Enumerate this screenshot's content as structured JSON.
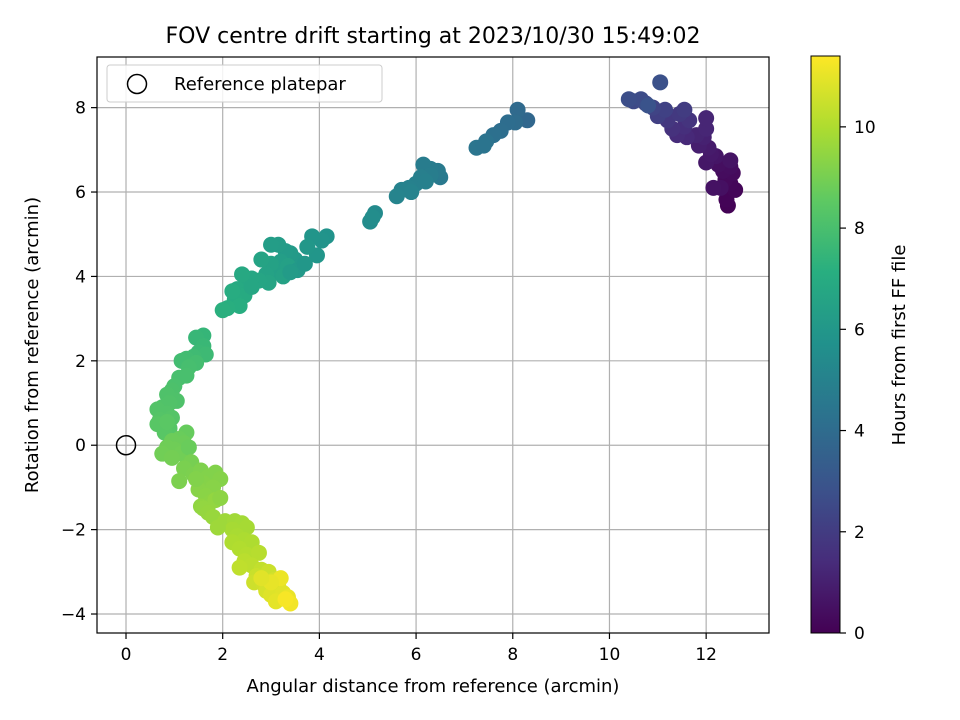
{
  "chart_data": {
    "type": "scatter",
    "title": "FOV centre drift starting at 2023/10/30 15:49:02",
    "xlabel": "Angular distance from reference (arcmin)",
    "ylabel": "Rotation from reference (arcmin)",
    "xlim": [
      -0.6,
      13.3
    ],
    "ylim": [
      -4.45,
      9.2
    ],
    "xticks": [
      0,
      2,
      4,
      6,
      8,
      10,
      12
    ],
    "yticks": [
      -4,
      -2,
      0,
      2,
      4,
      6,
      8
    ],
    "grid": true,
    "legend": {
      "position": "top-left",
      "entries": [
        "Reference platepar"
      ]
    },
    "reference_point": {
      "x": 0,
      "y": 0,
      "label": "Reference platepar"
    },
    "colorbar": {
      "label": "Hours from first FF file",
      "range": [
        0,
        11.4
      ],
      "ticks": [
        0,
        2,
        4,
        6,
        8,
        10
      ],
      "colormap": "viridis"
    },
    "series": [
      {
        "note": "each point: [x arcmin, y arcmin, hours]",
        "points": [
          [
            12.45,
            5.68,
            0.05
          ],
          [
            12.42,
            5.82,
            0.1
          ],
          [
            12.6,
            6.05,
            0.15
          ],
          [
            12.5,
            6.2,
            0.2
          ],
          [
            12.4,
            6.3,
            0.25
          ],
          [
            12.55,
            6.45,
            0.3
          ],
          [
            12.35,
            6.5,
            0.35
          ],
          [
            12.5,
            6.6,
            0.4
          ],
          [
            12.25,
            6.65,
            0.45
          ],
          [
            12.3,
            6.1,
            0.5
          ],
          [
            12.15,
            6.1,
            0.55
          ],
          [
            12.5,
            6.75,
            0.6
          ],
          [
            12.2,
            6.85,
            0.65
          ],
          [
            12.0,
            6.7,
            0.7
          ],
          [
            12.1,
            6.9,
            0.75
          ],
          [
            12.05,
            7.05,
            0.85
          ],
          [
            11.85,
            7.1,
            0.95
          ],
          [
            11.95,
            7.3,
            1.05
          ],
          [
            11.8,
            7.35,
            1.15
          ],
          [
            12.0,
            7.5,
            1.2
          ],
          [
            11.6,
            7.3,
            1.3
          ],
          [
            11.4,
            7.35,
            1.4
          ],
          [
            11.55,
            7.55,
            1.5
          ],
          [
            11.3,
            7.5,
            1.6
          ],
          [
            11.65,
            7.7,
            1.7
          ],
          [
            11.2,
            7.7,
            1.8
          ],
          [
            11.45,
            7.85,
            1.9
          ],
          [
            11.55,
            7.95,
            2.0
          ],
          [
            11.0,
            7.8,
            2.1
          ],
          [
            11.15,
            7.95,
            2.2
          ],
          [
            10.9,
            8.0,
            2.3
          ],
          [
            10.75,
            8.1,
            2.4
          ],
          [
            10.5,
            8.15,
            2.5
          ],
          [
            10.65,
            8.2,
            2.6
          ],
          [
            10.4,
            8.2,
            2.7
          ],
          [
            11.05,
            8.6,
            2.8
          ],
          [
            10.8,
            8.05,
            2.9
          ],
          [
            12.0,
            7.75,
            1.2
          ],
          [
            8.3,
            7.7,
            3.8
          ],
          [
            8.1,
            7.95,
            3.9
          ],
          [
            8.05,
            7.65,
            4.0
          ],
          [
            7.9,
            7.65,
            4.05
          ],
          [
            7.75,
            7.45,
            4.1
          ],
          [
            7.6,
            7.35,
            4.2
          ],
          [
            7.45,
            7.2,
            4.3
          ],
          [
            7.25,
            7.05,
            4.4
          ],
          [
            7.4,
            7.1,
            4.35
          ],
          [
            6.5,
            6.35,
            4.6
          ],
          [
            6.45,
            6.5,
            4.65
          ],
          [
            6.3,
            6.55,
            4.7
          ],
          [
            6.15,
            6.65,
            4.75
          ],
          [
            6.3,
            6.4,
            4.8
          ],
          [
            6.1,
            6.35,
            4.85
          ],
          [
            6.0,
            6.2,
            4.9
          ],
          [
            5.85,
            6.1,
            4.95
          ],
          [
            5.7,
            6.05,
            5.0
          ],
          [
            5.9,
            6.0,
            5.05
          ],
          [
            5.6,
            5.9,
            5.1
          ],
          [
            6.2,
            6.25,
            4.9
          ],
          [
            5.15,
            5.5,
            5.4
          ],
          [
            5.05,
            5.3,
            5.45
          ],
          [
            5.1,
            5.4,
            5.5
          ],
          [
            4.15,
            4.95,
            5.8
          ],
          [
            4.05,
            4.85,
            5.85
          ],
          [
            3.85,
            4.95,
            5.9
          ],
          [
            3.95,
            4.5,
            5.95
          ],
          [
            3.75,
            4.7,
            6.0
          ],
          [
            3.6,
            4.3,
            6.05
          ],
          [
            3.5,
            4.4,
            6.1
          ],
          [
            3.4,
            4.55,
            6.15
          ],
          [
            3.3,
            4.6,
            6.2
          ],
          [
            3.15,
            4.75,
            6.25
          ],
          [
            3.0,
            4.75,
            6.3
          ],
          [
            3.2,
            4.35,
            6.35
          ],
          [
            3.1,
            4.1,
            6.4
          ],
          [
            3.35,
            4.25,
            6.45
          ],
          [
            3.25,
            4.0,
            6.5
          ],
          [
            3.0,
            4.3,
            6.5
          ],
          [
            2.9,
            4.05,
            6.55
          ],
          [
            2.8,
            4.4,
            6.6
          ],
          [
            2.95,
            3.85,
            6.65
          ],
          [
            2.75,
            3.9,
            6.7
          ],
          [
            2.6,
            3.95,
            6.75
          ],
          [
            2.5,
            3.8,
            6.8
          ],
          [
            2.4,
            4.05,
            6.85
          ],
          [
            2.3,
            3.7,
            6.9
          ],
          [
            2.45,
            3.55,
            6.95
          ],
          [
            2.25,
            3.45,
            7.0
          ],
          [
            2.2,
            3.65,
            7.05
          ],
          [
            2.35,
            3.3,
            7.1
          ],
          [
            2.1,
            3.25,
            7.15
          ],
          [
            2.0,
            3.2,
            7.2
          ],
          [
            3.55,
            4.15,
            6.1
          ],
          [
            3.7,
            4.3,
            6.0
          ],
          [
            3.4,
            4.1,
            6.2
          ],
          [
            2.6,
            3.75,
            6.75
          ],
          [
            1.6,
            2.6,
            7.5
          ],
          [
            1.45,
            2.55,
            7.55
          ],
          [
            1.6,
            2.35,
            7.6
          ],
          [
            1.5,
            2.2,
            7.65
          ],
          [
            1.65,
            2.15,
            7.7
          ],
          [
            1.4,
            2.1,
            7.75
          ],
          [
            1.25,
            2.05,
            7.8
          ],
          [
            1.15,
            2.0,
            7.85
          ],
          [
            1.45,
            1.95,
            7.9
          ],
          [
            1.3,
            1.85,
            7.95
          ],
          [
            1.1,
            1.6,
            8.0
          ],
          [
            1.25,
            1.65,
            8.0
          ],
          [
            1.0,
            1.4,
            8.05
          ],
          [
            0.95,
            1.3,
            8.1
          ],
          [
            0.85,
            1.2,
            8.15
          ],
          [
            1.05,
            1.05,
            8.15
          ],
          [
            0.9,
            1.0,
            8.2
          ],
          [
            0.75,
            0.9,
            8.2
          ],
          [
            0.65,
            0.85,
            8.25
          ],
          [
            0.85,
            0.75,
            8.25
          ],
          [
            0.95,
            0.65,
            8.3
          ],
          [
            0.7,
            0.6,
            8.3
          ],
          [
            0.75,
            0.45,
            8.35
          ],
          [
            0.9,
            0.4,
            8.35
          ],
          [
            0.8,
            0.3,
            8.4
          ],
          [
            0.65,
            0.5,
            8.4
          ],
          [
            0.85,
            0.55,
            8.45
          ],
          [
            1.25,
            0.3,
            8.7
          ],
          [
            1.1,
            0.15,
            8.75
          ],
          [
            1.2,
            0.05,
            8.8
          ],
          [
            0.95,
            0.1,
            8.8
          ],
          [
            0.85,
            -0.05,
            8.85
          ],
          [
            1.0,
            -0.1,
            8.85
          ],
          [
            1.15,
            -0.2,
            8.9
          ],
          [
            0.75,
            -0.2,
            8.9
          ],
          [
            0.95,
            -0.3,
            8.95
          ],
          [
            1.3,
            -0.05,
            8.75
          ],
          [
            1.35,
            -0.4,
            9.0
          ],
          [
            1.2,
            -0.55,
            9.05
          ],
          [
            1.4,
            -0.7,
            9.1
          ],
          [
            1.1,
            -0.85,
            9.1
          ],
          [
            1.55,
            -0.6,
            9.15
          ],
          [
            1.7,
            -0.75,
            9.2
          ],
          [
            1.85,
            -0.65,
            9.2
          ],
          [
            1.95,
            -0.8,
            9.25
          ],
          [
            1.6,
            -0.9,
            9.25
          ],
          [
            1.8,
            -1.0,
            9.3
          ],
          [
            1.5,
            -1.05,
            9.3
          ],
          [
            1.65,
            -1.2,
            9.35
          ],
          [
            1.75,
            -1.35,
            9.4
          ],
          [
            1.55,
            -1.45,
            9.45
          ],
          [
            1.85,
            -1.3,
            9.5
          ],
          [
            1.45,
            -0.8,
            9.2
          ],
          [
            1.6,
            -1.5,
            9.5
          ],
          [
            1.7,
            -1.6,
            9.55
          ],
          [
            1.8,
            -1.7,
            9.6
          ],
          [
            1.95,
            -1.25,
            9.4
          ],
          [
            2.05,
            -1.8,
            9.7
          ],
          [
            2.25,
            -1.8,
            9.75
          ],
          [
            2.4,
            -1.85,
            9.8
          ],
          [
            2.5,
            -1.95,
            9.85
          ],
          [
            2.2,
            -2.0,
            9.85
          ],
          [
            1.9,
            -1.95,
            9.7
          ],
          [
            2.3,
            -2.15,
            9.9
          ],
          [
            2.45,
            -2.25,
            9.95
          ],
          [
            2.2,
            -2.3,
            10.0
          ],
          [
            2.6,
            -2.3,
            10.0
          ],
          [
            2.35,
            -2.45,
            10.05
          ],
          [
            2.5,
            -2.6,
            10.1
          ],
          [
            2.75,
            -2.55,
            10.15
          ],
          [
            2.45,
            -2.75,
            10.2
          ],
          [
            2.6,
            -2.85,
            10.25
          ],
          [
            2.35,
            -2.9,
            10.3
          ],
          [
            2.8,
            -2.95,
            10.35
          ],
          [
            2.7,
            -3.1,
            10.45
          ],
          [
            2.95,
            -3.0,
            10.5
          ],
          [
            2.65,
            -3.25,
            10.55
          ],
          [
            2.85,
            -3.3,
            10.6
          ],
          [
            3.05,
            -3.2,
            10.65
          ],
          [
            2.9,
            -3.45,
            10.7
          ],
          [
            3.15,
            -3.35,
            10.8
          ],
          [
            3.0,
            -3.55,
            10.85
          ],
          [
            3.25,
            -3.5,
            10.9
          ],
          [
            3.1,
            -3.7,
            10.95
          ],
          [
            3.35,
            -3.6,
            11.05
          ],
          [
            3.2,
            -3.15,
            11.1
          ],
          [
            3.4,
            -3.75,
            11.2
          ],
          [
            3.3,
            -3.65,
            11.3
          ],
          [
            3.0,
            -3.25,
            11.0
          ],
          [
            2.8,
            -3.15,
            10.9
          ]
        ]
      }
    ]
  }
}
